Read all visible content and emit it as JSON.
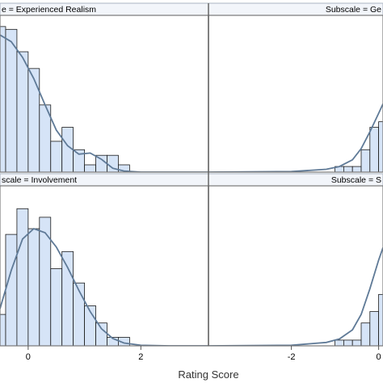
{
  "chart_data": {
    "type": "bar",
    "xlabel": "Rating Score",
    "ylabel": "",
    "colors": {
      "bar_fill": "#d6e4f7",
      "bar_stroke": "#1a1a1a",
      "curve": "#5f7a97",
      "strip_bg": "#f2f5fa",
      "border": "#777777"
    },
    "bin_width": 0.2,
    "left_xlim": [
      -0.5,
      3.2
    ],
    "right_xlim": [
      -3.9,
      0.1
    ],
    "left_ticks": [
      {
        "value": 0,
        "label": "0"
      },
      {
        "value": 2,
        "label": "2"
      }
    ],
    "right_ticks": [
      {
        "value": -2,
        "label": "-2"
      },
      {
        "value": 0,
        "label": "0"
      }
    ],
    "panels": [
      {
        "label": "e = Experienced Realism",
        "side": "left",
        "ylim": [
          0,
          28
        ],
        "bins_start": -0.6,
        "values": [
          26,
          25.5,
          21.5,
          18.5,
          12,
          5.5,
          8,
          4,
          1.3,
          3,
          3,
          1.3
        ],
        "curve": [
          [
            -0.5,
            24.5
          ],
          [
            -0.3,
            23.3
          ],
          [
            -0.1,
            20.5
          ],
          [
            0.1,
            16.7
          ],
          [
            0.3,
            12
          ],
          [
            0.5,
            7.5
          ],
          [
            0.7,
            4.7
          ],
          [
            0.9,
            3.2
          ],
          [
            1.1,
            3.4
          ],
          [
            1.3,
            2.3
          ],
          [
            1.5,
            0.7
          ],
          [
            1.7,
            0.2
          ],
          [
            2.0,
            0
          ],
          [
            3.2,
            0
          ]
        ]
      },
      {
        "label": "Subscale = Ge",
        "side": "right",
        "ylim": [
          0,
          28
        ],
        "bins_start": -1.0,
        "values": [
          1,
          1,
          1,
          4,
          8,
          9
        ],
        "curve": [
          [
            -3.9,
            0
          ],
          [
            -2.0,
            0.1
          ],
          [
            -1.2,
            0.5
          ],
          [
            -0.9,
            1.0
          ],
          [
            -0.6,
            2.2
          ],
          [
            -0.4,
            4.2
          ],
          [
            -0.2,
            7.2
          ],
          [
            0.0,
            10.5
          ],
          [
            0.1,
            12.2
          ]
        ]
      },
      {
        "label": "scale = Involvement",
        "side": "left",
        "ylim": [
          0,
          28
        ],
        "bins_start": -0.6,
        "values": [
          5.5,
          19.5,
          24,
          20.5,
          22.5,
          13.5,
          16.5,
          11,
          7,
          4,
          1.5,
          1.5
        ],
        "curve": [
          [
            -0.5,
            6.5
          ],
          [
            -0.3,
            13.2
          ],
          [
            -0.1,
            18.7
          ],
          [
            0.1,
            20.5
          ],
          [
            0.3,
            19.8
          ],
          [
            0.5,
            17.3
          ],
          [
            0.7,
            13.7
          ],
          [
            0.9,
            9.7
          ],
          [
            1.1,
            6.0
          ],
          [
            1.3,
            3.0
          ],
          [
            1.5,
            1.3
          ],
          [
            1.7,
            0.5
          ],
          [
            2.0,
            0.1
          ],
          [
            2.5,
            0
          ],
          [
            3.2,
            0
          ]
        ]
      },
      {
        "label": "Subscale = S",
        "side": "right",
        "ylim": [
          0,
          28
        ],
        "bins_start": -1.0,
        "values": [
          1,
          1,
          1,
          4,
          6,
          9
        ],
        "curve": [
          [
            -3.9,
            0
          ],
          [
            -2.0,
            0.1
          ],
          [
            -1.2,
            0.6
          ],
          [
            -0.9,
            1.2
          ],
          [
            -0.6,
            2.8
          ],
          [
            -0.4,
            5.5
          ],
          [
            -0.2,
            10
          ],
          [
            0.0,
            15
          ],
          [
            0.1,
            17.2
          ]
        ]
      }
    ]
  }
}
